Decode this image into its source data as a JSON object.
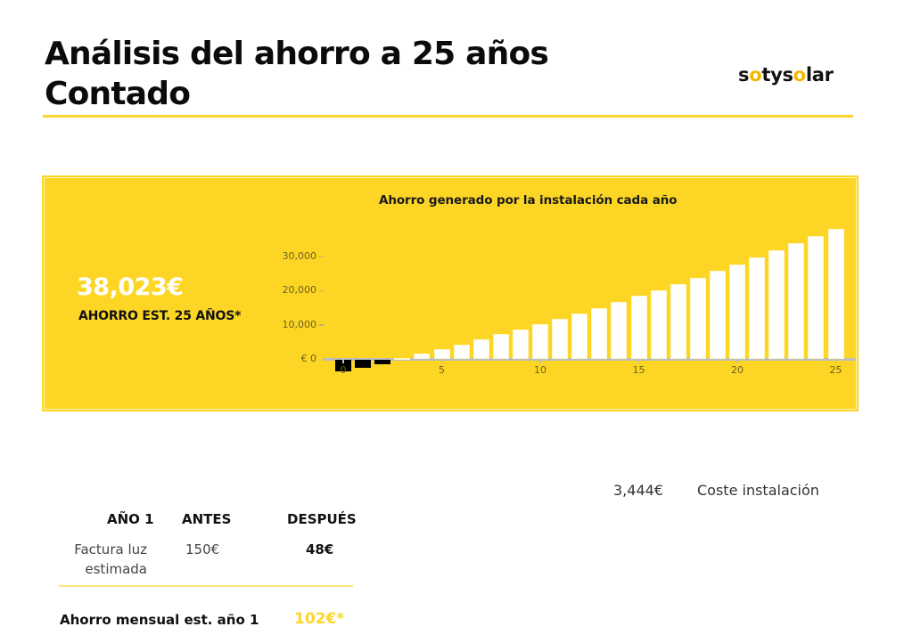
{
  "header": {
    "title_line1": "Análisis del ahorro a 25 años",
    "title_line2": "Contado",
    "logo": {
      "parts": [
        "s",
        "o",
        "tys",
        "o",
        "lar"
      ],
      "text": "sotysolar"
    }
  },
  "summary": {
    "total_value": "38,023€",
    "total_label": "AHORRO EST. 25 AÑOS*"
  },
  "chart_data": {
    "type": "bar",
    "title": "Ahorro generado por la instalación cada año",
    "xlabel": "",
    "ylabel": "",
    "x": [
      0,
      1,
      2,
      3,
      4,
      5,
      6,
      7,
      8,
      9,
      10,
      11,
      12,
      13,
      14,
      15,
      16,
      17,
      18,
      19,
      20,
      21,
      22,
      23,
      24,
      25
    ],
    "values": [
      -3444,
      -2400,
      -1200,
      200,
      1600,
      2900,
      4200,
      5700,
      7300,
      8600,
      10200,
      11700,
      13300,
      14900,
      16700,
      18500,
      20100,
      21900,
      23800,
      25800,
      27700,
      29800,
      31800,
      33900,
      36000,
      38023
    ],
    "y_ticks": [
      {
        "value": 0,
        "label": "€ 0"
      },
      {
        "value": 10000,
        "label": "10,000"
      },
      {
        "value": 20000,
        "label": "20,000"
      },
      {
        "value": 30000,
        "label": "30,000"
      }
    ],
    "x_ticks": [
      {
        "value": 0,
        "label": "0"
      },
      {
        "value": 5,
        "label": "5"
      },
      {
        "value": 10,
        "label": "10"
      },
      {
        "value": 15,
        "label": "15"
      },
      {
        "value": 20,
        "label": "20"
      },
      {
        "value": 25,
        "label": "25"
      }
    ],
    "ylim": [
      -4000,
      40000
    ],
    "grid": false,
    "legend": null,
    "colors": {
      "positive": "#ffffff",
      "negative": "#000000",
      "background": "#fdd625"
    }
  },
  "installation": {
    "cost_value": "3,444€",
    "cost_label": "Coste instalación"
  },
  "comparison": {
    "headers": {
      "year": "AÑO 1",
      "before": "ANTES",
      "after": "DESPUÉS"
    },
    "rows": [
      {
        "label_line1": "Factura luz",
        "label_line2": "estimada",
        "before": "150€",
        "after": "48€"
      }
    ],
    "monthly_saving_label": "Ahorro mensual est. año 1",
    "monthly_saving_value": "102€*"
  },
  "colors": {
    "accent": "#fcd62a",
    "panel": "#fdd625",
    "text": "#111111"
  }
}
